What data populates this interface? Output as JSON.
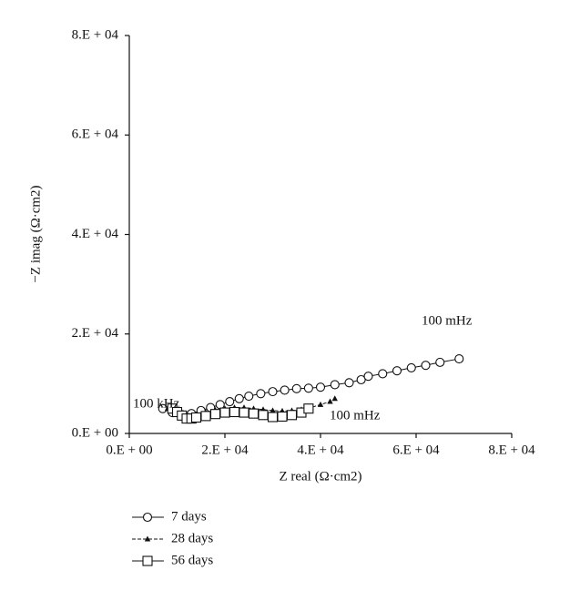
{
  "chart_data": {
    "type": "scatter",
    "y_label": "−Z imag (Ω·cm2)",
    "x_label": "Z real (Ω·cm2)",
    "xlim": [
      0,
      80000
    ],
    "ylim": [
      0,
      80000
    ],
    "xticks": [
      {
        "value": 0,
        "label": "0.E + 00"
      },
      {
        "value": 20000,
        "label": "2.E + 04"
      },
      {
        "value": 40000,
        "label": "4.E + 04"
      },
      {
        "value": 60000,
        "label": "6.E + 04"
      },
      {
        "value": 80000,
        "label": "8.E + 04"
      }
    ],
    "yticks": [
      {
        "value": 0,
        "label": "0.E + 00"
      },
      {
        "value": 20000,
        "label": "2.E + 04"
      },
      {
        "value": 40000,
        "label": "4.E + 04"
      },
      {
        "value": 60000,
        "label": "6.E + 04"
      },
      {
        "value": 80000,
        "label": "8.E + 04"
      }
    ],
    "annotations": [
      "100 mHz",
      "100 mHz",
      "100 kHz"
    ],
    "series": [
      {
        "name": "7 days",
        "color": "#111111",
        "marker": "circle",
        "x": [
          7000,
          9000,
          11000,
          13000,
          15000,
          17000,
          19000,
          21000,
          23000,
          25000,
          27500,
          30000,
          32500,
          35000,
          37500,
          40000,
          43000,
          46000,
          48500,
          50000,
          53000,
          56000,
          59000,
          62000,
          65000,
          69000
        ],
        "values": [
          5000,
          4200,
          3800,
          4000,
          4600,
          5200,
          5800,
          6400,
          7000,
          7500,
          8000,
          8400,
          8700,
          9000,
          9100,
          9300,
          9800,
          10200,
          10800,
          11500,
          12000,
          12600,
          13200,
          13700,
          14300,
          15000
        ]
      },
      {
        "name": "28 days",
        "color": "#111111",
        "marker": "triangle",
        "x": [
          8000,
          10000,
          12000,
          14000,
          16000,
          18000,
          20000,
          22000,
          24000,
          26000,
          28000,
          30000,
          32000,
          34000,
          36000,
          38000,
          40000,
          42000,
          43000
        ],
        "values": [
          5000,
          4300,
          3600,
          3700,
          4200,
          4700,
          5000,
          5200,
          5200,
          5000,
          4800,
          4600,
          4500,
          4600,
          4800,
          5200,
          5800,
          6400,
          7000
        ]
      },
      {
        "name": "56 days",
        "color": "#111111",
        "marker": "square",
        "x": [
          9000,
          10000,
          11000,
          12000,
          13000,
          14000,
          16000,
          18000,
          20000,
          22000,
          24000,
          26000,
          28000,
          30000,
          32000,
          34000,
          36000,
          37500
        ],
        "values": [
          5000,
          4300,
          3600,
          3000,
          3000,
          3200,
          3500,
          3900,
          4200,
          4300,
          4200,
          4000,
          3700,
          3300,
          3400,
          3700,
          4200,
          5000
        ]
      }
    ]
  }
}
